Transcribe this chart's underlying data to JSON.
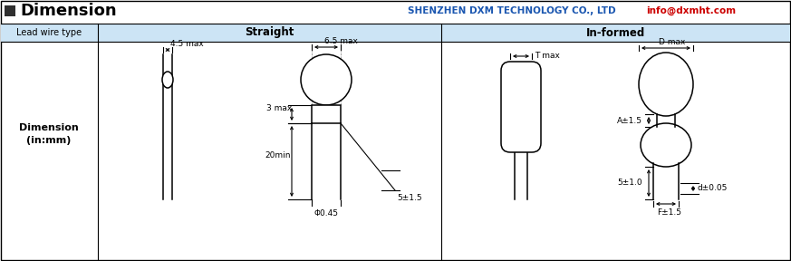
{
  "title": "Dimension",
  "company": "SHENZHEN DXM TECHNOLOGY CO., LTD",
  "email": "info@dxmht.com",
  "header_bg": "#cce4f5",
  "header_text_straight": "Straight",
  "header_text_informed": "In-formed",
  "lead_wire_label": "Lead wire type",
  "dim_label": "Dimension\n(in:mm)",
  "straight_labels": [
    "4.5 max",
    "6.5 max",
    "3 max",
    "20min",
    "5±1.5",
    "Φ0.45"
  ],
  "informed_labels": [
    "T max",
    "D max",
    "A±1.5",
    "5±1.0",
    "F±1.5",
    "d±0.05"
  ],
  "border_color": "#000000",
  "bg_color": "#ffffff",
  "title_box_color": "#2f2f2f"
}
